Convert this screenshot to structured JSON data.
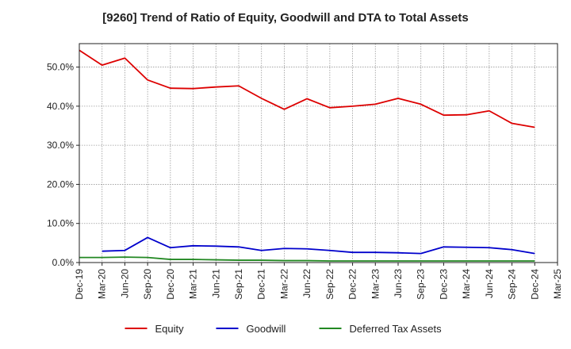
{
  "chart_data": {
    "type": "line",
    "title": "[9260]  Trend of Ratio of Equity, Goodwill and DTA to Total Assets",
    "xlabel": "",
    "ylabel": "",
    "x_ticks": [
      "Dec-19",
      "Mar-20",
      "Jun-20",
      "Sep-20",
      "Dec-20",
      "Mar-21",
      "Jun-21",
      "Sep-21",
      "Dec-21",
      "Mar-22",
      "Jun-22",
      "Sep-22",
      "Dec-22",
      "Mar-23",
      "Jun-23",
      "Sep-23",
      "Dec-23",
      "Mar-24",
      "Jun-24",
      "Sep-24",
      "Dec-24",
      "Mar-25"
    ],
    "y_ticks": [
      "0.0%",
      "10.0%",
      "20.0%",
      "30.0%",
      "40.0%",
      "50.0%"
    ],
    "ylim": [
      0,
      56
    ],
    "grid": true,
    "legend_position": "bottom",
    "series": [
      {
        "name": "Equity",
        "color": "#dd0000",
        "values": [
          54.3,
          50.5,
          52.3,
          46.7,
          44.6,
          44.5,
          44.9,
          45.2,
          42.0,
          39.2,
          41.9,
          39.6,
          40.0,
          40.5,
          42.0,
          40.5,
          37.7,
          37.8,
          38.8,
          35.6,
          34.6,
          null
        ]
      },
      {
        "name": "Goodwill",
        "color": "#0000cc",
        "values": [
          null,
          2.9,
          3.1,
          6.4,
          3.8,
          4.3,
          4.2,
          4.0,
          3.1,
          3.6,
          3.5,
          3.1,
          2.6,
          2.6,
          2.5,
          2.3,
          4.0,
          3.9,
          3.8,
          3.3,
          2.3,
          null
        ]
      },
      {
        "name": "Deferred Tax Assets",
        "color": "#228822",
        "values": [
          1.3,
          1.3,
          1.4,
          1.3,
          0.8,
          0.8,
          0.7,
          0.6,
          0.6,
          0.5,
          0.5,
          0.4,
          0.4,
          0.4,
          0.4,
          0.4,
          0.4,
          0.4,
          0.4,
          0.4,
          0.4,
          null
        ]
      }
    ]
  }
}
